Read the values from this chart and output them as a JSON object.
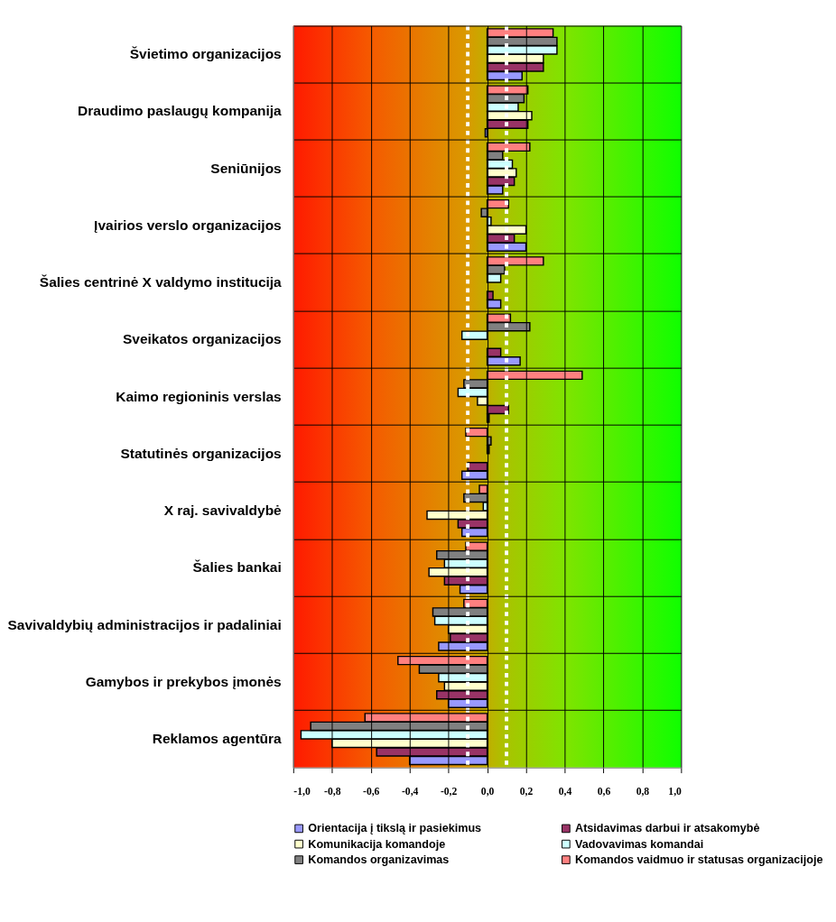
{
  "chart_data": {
    "type": "bar",
    "orientation": "horizontal",
    "categories": [
      "Švietimo organizacijos",
      "Draudimo paslaugų kompanija",
      "Seniūnijos",
      "Įvairios verslo organizacijos",
      "Šalies centrinė X valdymo institucija",
      "Sveikatos organizacijos",
      "Kaimo regioninis verslas",
      "Statutinės organizacijos",
      "X raj. savivaldybė",
      "Šalies bankai",
      "Savivaldybių administracijos ir padaliniai",
      "Gamybos ir prekybos įmonės",
      "Reklamos agentūra"
    ],
    "series": [
      {
        "name": "Orientacija į tikslą ir pasiekimus",
        "color": "#9999ff",
        "values": [
          0.18,
          -0.01,
          0.08,
          0.2,
          0.07,
          0.17,
          0.01,
          -0.13,
          -0.13,
          -0.14,
          -0.25,
          -0.2,
          -0.4
        ]
      },
      {
        "name": "Atsidavimas darbui ir atsakomybė",
        "color": "#993366",
        "values": [
          0.29,
          0.21,
          0.14,
          0.14,
          0.03,
          0.07,
          0.11,
          -0.1,
          -0.15,
          -0.22,
          -0.19,
          -0.26,
          -0.57
        ]
      },
      {
        "name": "Komunikacija komandoje",
        "color": "#ffffcc",
        "values": [
          0.29,
          0.23,
          0.15,
          0.2,
          null,
          null,
          -0.05,
          null,
          -0.31,
          -0.3,
          -0.2,
          -0.22,
          -0.8
        ]
      },
      {
        "name": "Vadovavimas komandai",
        "color": "#ccffff",
        "values": [
          0.36,
          0.16,
          0.13,
          0.02,
          0.07,
          -0.13,
          -0.15,
          0.01,
          -0.02,
          -0.22,
          -0.27,
          -0.25,
          -0.96
        ]
      },
      {
        "name": "Komandos organizavimas",
        "color": "#808080",
        "values": [
          0.36,
          0.19,
          0.08,
          -0.03,
          0.09,
          0.22,
          -0.12,
          0.02,
          -0.12,
          -0.26,
          -0.28,
          -0.35,
          -0.91
        ]
      },
      {
        "name": "Komandos vaidmuo ir statusas organizacijoje",
        "color": "#ff8080",
        "values": [
          0.34,
          0.21,
          0.22,
          0.11,
          0.29,
          0.12,
          0.49,
          -0.11,
          -0.04,
          -0.11,
          -0.12,
          -0.46,
          -0.63
        ]
      }
    ],
    "xlim": [
      -1.0,
      1.0
    ],
    "xticks": [
      {
        "value": -1.0,
        "label": "-1,0"
      },
      {
        "value": -0.8,
        "label": "-0,8"
      },
      {
        "value": -0.6,
        "label": "-0,6"
      },
      {
        "value": -0.4,
        "label": "-0,4"
      },
      {
        "value": -0.2,
        "label": "-0,2"
      },
      {
        "value": 0.0,
        "label": "0,0"
      },
      {
        "value": 0.2,
        "label": "0,2"
      },
      {
        "value": 0.4,
        "label": "0,4"
      },
      {
        "value": 0.6,
        "label": "0,6"
      },
      {
        "value": 0.8,
        "label": "0,8"
      },
      {
        "value": 1.0,
        "label": "1,0"
      }
    ],
    "ref_lines": [
      {
        "axis": "x",
        "value": -0.1,
        "color": "#ffffff",
        "line_style": "dotted"
      },
      {
        "axis": "x",
        "value": 0.1,
        "color": "#ffffff",
        "line_style": "dotted"
      }
    ],
    "grid": true,
    "legend": "bottom"
  }
}
